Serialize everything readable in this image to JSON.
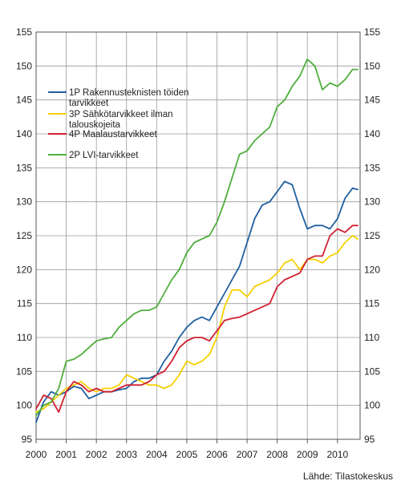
{
  "chart_data": {
    "type": "line",
    "title": "",
    "xlabel": "",
    "ylabel": "",
    "ylim": [
      95,
      155
    ],
    "xlim": [
      2000,
      2010.75
    ],
    "yticks": [
      95,
      100,
      105,
      110,
      115,
      120,
      125,
      130,
      135,
      140,
      145,
      150,
      155
    ],
    "xticks": [
      2000,
      2001,
      2002,
      2003,
      2004,
      2005,
      2006,
      2007,
      2008,
      2009,
      2010
    ],
    "grid": true,
    "legend_position": "top-left",
    "source": "Lähde: Tilastokeskus",
    "series": [
      {
        "name": "1P Rakennusteknisten töiden tarvikkeet",
        "color": "#1f5fa0",
        "x": [
          2000.0,
          2000.25,
          2000.5,
          2000.75,
          2001.0,
          2001.25,
          2001.5,
          2001.75,
          2002.0,
          2002.25,
          2002.5,
          2002.75,
          2003.0,
          2003.25,
          2003.5,
          2003.75,
          2004.0,
          2004.25,
          2004.5,
          2004.75,
          2005.0,
          2005.25,
          2005.5,
          2005.75,
          2006.0,
          2006.25,
          2006.5,
          2006.75,
          2007.0,
          2007.25,
          2007.5,
          2007.75,
          2008.0,
          2008.25,
          2008.5,
          2008.75,
          2009.0,
          2009.25,
          2009.5,
          2009.75,
          2010.0,
          2010.25,
          2010.5,
          2010.67
        ],
        "y": [
          97.5,
          100.5,
          102.0,
          101.5,
          102.0,
          102.8,
          102.5,
          101.0,
          101.5,
          102.0,
          102.0,
          102.3,
          102.5,
          103.5,
          104.0,
          104.0,
          104.5,
          106.5,
          108.0,
          110.0,
          111.5,
          112.5,
          113.0,
          112.5,
          114.5,
          116.5,
          118.5,
          120.5,
          124.0,
          127.5,
          129.5,
          130.0,
          131.5,
          133.0,
          132.5,
          129.0,
          126.0,
          126.5,
          126.5,
          126.0,
          127.5,
          130.5,
          132.0,
          131.8
        ]
      },
      {
        "name": "3P Sähkötarvikkeet ilman talouskojeita",
        "color": "#f5d000",
        "x": [
          2000.0,
          2000.25,
          2000.5,
          2000.75,
          2001.0,
          2001.25,
          2001.5,
          2001.75,
          2002.0,
          2002.25,
          2002.5,
          2002.75,
          2003.0,
          2003.25,
          2003.5,
          2003.75,
          2004.0,
          2004.25,
          2004.5,
          2004.75,
          2005.0,
          2005.25,
          2005.5,
          2005.75,
          2006.0,
          2006.25,
          2006.5,
          2006.75,
          2007.0,
          2007.25,
          2007.5,
          2007.75,
          2008.0,
          2008.25,
          2008.5,
          2008.75,
          2009.0,
          2009.25,
          2009.5,
          2009.75,
          2010.0,
          2010.25,
          2010.5,
          2010.67
        ],
        "y": [
          99.0,
          99.5,
          100.5,
          101.5,
          102.5,
          103.0,
          103.5,
          102.5,
          102.0,
          102.5,
          102.5,
          103.0,
          104.5,
          104.0,
          103.5,
          103.0,
          103.0,
          102.5,
          103.0,
          104.5,
          106.5,
          106.0,
          106.5,
          107.5,
          110.0,
          114.5,
          117.0,
          117.0,
          116.0,
          117.5,
          118.0,
          118.5,
          119.5,
          121.0,
          121.5,
          120.0,
          121.5,
          121.5,
          121.0,
          122.0,
          122.5,
          124.0,
          125.0,
          124.5
        ]
      },
      {
        "name": "4P Maalaustarvikkeet",
        "color": "#d02030",
        "x": [
          2000.0,
          2000.25,
          2000.5,
          2000.75,
          2001.0,
          2001.25,
          2001.5,
          2001.75,
          2002.0,
          2002.25,
          2002.5,
          2002.75,
          2003.0,
          2003.25,
          2003.5,
          2003.75,
          2004.0,
          2004.25,
          2004.5,
          2004.75,
          2005.0,
          2005.25,
          2005.5,
          2005.75,
          2006.0,
          2006.25,
          2006.5,
          2006.75,
          2007.0,
          2007.25,
          2007.5,
          2007.75,
          2008.0,
          2008.25,
          2008.5,
          2008.75,
          2009.0,
          2009.25,
          2009.5,
          2009.75,
          2010.0,
          2010.25,
          2010.5,
          2010.67
        ],
        "y": [
          99.5,
          101.5,
          101.0,
          99.0,
          102.0,
          103.5,
          103.0,
          102.0,
          102.5,
          102.0,
          102.0,
          102.5,
          103.0,
          103.0,
          103.0,
          103.5,
          104.5,
          105.0,
          106.5,
          108.5,
          109.5,
          110.0,
          110.0,
          109.5,
          111.0,
          112.5,
          112.8,
          113.0,
          113.5,
          114.0,
          114.5,
          115.0,
          117.5,
          118.5,
          119.0,
          119.5,
          121.5,
          122.0,
          122.0,
          125.0,
          126.0,
          125.5,
          126.5,
          126.5
        ]
      },
      {
        "name": "2P LVI-tarvikkeet",
        "color": "#4fae3c",
        "x": [
          2000.0,
          2000.25,
          2000.5,
          2000.75,
          2001.0,
          2001.25,
          2001.5,
          2001.75,
          2002.0,
          2002.25,
          2002.5,
          2002.75,
          2003.0,
          2003.25,
          2003.5,
          2003.75,
          2004.0,
          2004.25,
          2004.5,
          2004.75,
          2005.0,
          2005.25,
          2005.5,
          2005.75,
          2006.0,
          2006.25,
          2006.5,
          2006.75,
          2007.0,
          2007.25,
          2007.5,
          2007.75,
          2008.0,
          2008.25,
          2008.5,
          2008.75,
          2009.0,
          2009.25,
          2009.5,
          2009.75,
          2010.0,
          2010.25,
          2010.5,
          2010.67
        ],
        "y": [
          98.5,
          100.0,
          100.5,
          102.5,
          106.5,
          106.8,
          107.5,
          108.5,
          109.5,
          109.8,
          110.0,
          111.5,
          112.5,
          113.5,
          114.0,
          114.0,
          114.5,
          116.5,
          118.5,
          120.0,
          122.5,
          124.0,
          124.5,
          125.0,
          127.0,
          130.0,
          133.5,
          137.0,
          137.5,
          139.0,
          140.0,
          141.0,
          144.0,
          145.0,
          147.0,
          148.5,
          151.0,
          150.0,
          146.5,
          147.5,
          147.0,
          148.0,
          149.5,
          149.5
        ]
      }
    ]
  }
}
